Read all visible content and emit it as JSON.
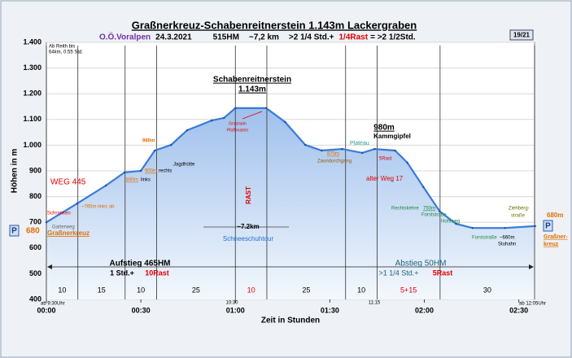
{
  "chart_data": {
    "type": "area",
    "title": "Graßnerkreuz-Schabenreitnerstein 1.143m Lackergraben",
    "subtitle_parts": [
      {
        "text": "O.Ö.Voralpen",
        "color": "#7030a0"
      },
      {
        "text": "24.3.2021",
        "color": "#000000"
      },
      {
        "text": "515HM",
        "color": "#000000"
      },
      {
        "text": "~7,2 km",
        "color": "#000000"
      },
      {
        "text": ">2 1/4 Std.+",
        "color": "#000000"
      },
      {
        "text": "1/4Rast",
        "color": "#e00000"
      },
      {
        "text": "= >2 1/2Std.",
        "color": "#000000"
      }
    ],
    "badge": "19/21",
    "ylabel": "Höhen in m",
    "xlabel": "Zeit in Stunden",
    "x": [
      0,
      9.8,
      18.9,
      24.8,
      30,
      34.4,
      39.6,
      44.7,
      52.5,
      56.4,
      60,
      69.8,
      75.8,
      82.2,
      87.4,
      93.9,
      100.3,
      104.2,
      110.7,
      114.6,
      119.7,
      124.9,
      130.1,
      135.3,
      145.6,
      155.2
    ],
    "values": [
      700,
      773,
      843,
      894,
      900,
      979,
      1001,
      1058,
      1096,
      1106,
      1144,
      1144,
      1090,
      1001,
      979,
      985,
      970,
      985,
      979,
      932,
      837,
      742,
      694,
      678,
      678,
      685
    ],
    "color": "#3a7bd5",
    "xlim": [
      0,
      155
    ],
    "ylim": [
      400,
      1400
    ],
    "xticks": [
      {
        "value": 0,
        "label": "00:00"
      },
      {
        "value": 30,
        "label": "00:30"
      },
      {
        "value": 60,
        "label": "01:00"
      },
      {
        "value": 90,
        "label": "01:30"
      },
      {
        "value": 120,
        "label": "02:00"
      },
      {
        "value": 150,
        "label": "02:30"
      }
    ],
    "yticks": [
      400,
      500,
      600,
      700,
      800,
      900,
      {
        "value": 1000,
        "label": "1.000"
      },
      {
        "value": 1100,
        "label": "1.100"
      },
      {
        "value": 1200,
        "label": "1.200"
      },
      {
        "value": 1300,
        "label": "1.300"
      },
      {
        "value": 1400,
        "label": "1.400"
      }
    ],
    "grid": true,
    "segment_bounds": [
      0,
      10,
      25,
      35,
      60,
      70,
      95,
      105,
      125,
      155
    ],
    "segments": [
      {
        "label": "10",
        "color": "#000000"
      },
      {
        "label": "15",
        "color": "#000000"
      },
      {
        "label": "10",
        "color": "#000000"
      },
      {
        "label": "25",
        "color": "#000000"
      },
      {
        "label": "10",
        "color": "#e00000"
      },
      {
        "label": "25",
        "color": "#000000"
      },
      {
        "label": "10",
        "color": "#000000"
      },
      {
        "label": "5+15",
        "color": "#e00000"
      },
      {
        "label": "30",
        "color": "#000000"
      }
    ],
    "parking": "P",
    "annotations": [
      {
        "text": "Ab Reith bis",
        "color": "#000000"
      },
      {
        "text": "64km, 0:55 Std.",
        "color": "#000000"
      },
      {
        "text": "WEG 445",
        "color": "#e00000"
      },
      {
        "text": "Schranken",
        "color": "#e00000"
      },
      {
        "text": "Gatterweg",
        "color": "#666666"
      },
      {
        "text": "~765m links ab",
        "color": "#e07000"
      },
      {
        "text": "680",
        "color": "#e07000"
      },
      {
        "text": "Graßnerkreuz",
        "color": "#e07000"
      },
      {
        "text": "890m",
        "color": "#e07000"
      },
      {
        "text": "links",
        "color": "#000000"
      },
      {
        "text": "980m",
        "color": "#e07000"
      },
      {
        "text": "Jagdhütte",
        "color": "#000000"
      },
      {
        "text": "900m",
        "color": "#e07000"
      },
      {
        "text": "rechts",
        "color": "#000000"
      },
      {
        "text": "Schabenreitnerstein",
        "color": "#000000"
      },
      {
        "text": "1.143m",
        "color": "#000000"
      },
      {
        "text": "Grashalm",
        "color": "#e00000"
      },
      {
        "text": "Pfaffenstein",
        "color": "#e00000"
      },
      {
        "text": "RAST",
        "color": "#e00000"
      },
      {
        "text": "~7.2km",
        "color": "#000000"
      },
      {
        "text": "Schneeschuhtour",
        "color": "#1f6fd0"
      },
      {
        "text": "980m",
        "color": "#000000"
      },
      {
        "text": "Kammgipfel",
        "color": "#000000"
      },
      {
        "text": "Plateau",
        "color": "#2a9d8f"
      },
      {
        "text": "870m",
        "color": "#e07000"
      },
      {
        "text": "Zaundurchgang",
        "color": "#9a5a00"
      },
      {
        "text": "5Rast",
        "color": "#e00000"
      },
      {
        "text": "alter  Weg 17",
        "color": "#e00000"
      },
      {
        "text": "Rechtskehre",
        "color": "#1a8a3a"
      },
      {
        "text": "750m",
        "color": "#1a8a3a"
      },
      {
        "text": "Forststraße",
        "color": "#1a8a3a"
      },
      {
        "text": "Hohlweg",
        "color": "#1a8a3a"
      },
      {
        "text": "Forststraße",
        "color": "#1a8a3a"
      },
      {
        "text": "~660m",
        "color": "#000000"
      },
      {
        "text": "Stuhahn",
        "color": "#000000"
      },
      {
        "text": "Ziehberg-",
        "color": "#6b6b00"
      },
      {
        "text": "straße",
        "color": "#6b6b00"
      },
      {
        "text": "680m",
        "color": "#e07000"
      },
      {
        "text": "Graßner-",
        "color": "#e07000"
      },
      {
        "text": "kreuz",
        "color": "#e07000"
      },
      {
        "text": "Aufstieg 465HM",
        "color": "#000000"
      },
      {
        "text": "1 Std.+",
        "color": "#000000"
      },
      {
        "text": "10Rast",
        "color": "#e00000"
      },
      {
        "text": "Abstieg 50HM",
        "color": "#1f5f7a"
      },
      {
        "text": ">1 1/4 Std.+",
        "color": "#1f5f7a"
      },
      {
        "text": "5Rast",
        "color": "#e00000"
      },
      {
        "text": "ab 9:30Uhr",
        "color": "#000000"
      },
      {
        "text": "ab 12:05Uhr",
        "color": "#000000"
      },
      {
        "text": "10:30",
        "color": "#000000"
      },
      {
        "text": "11:15",
        "color": "#000000"
      }
    ]
  }
}
